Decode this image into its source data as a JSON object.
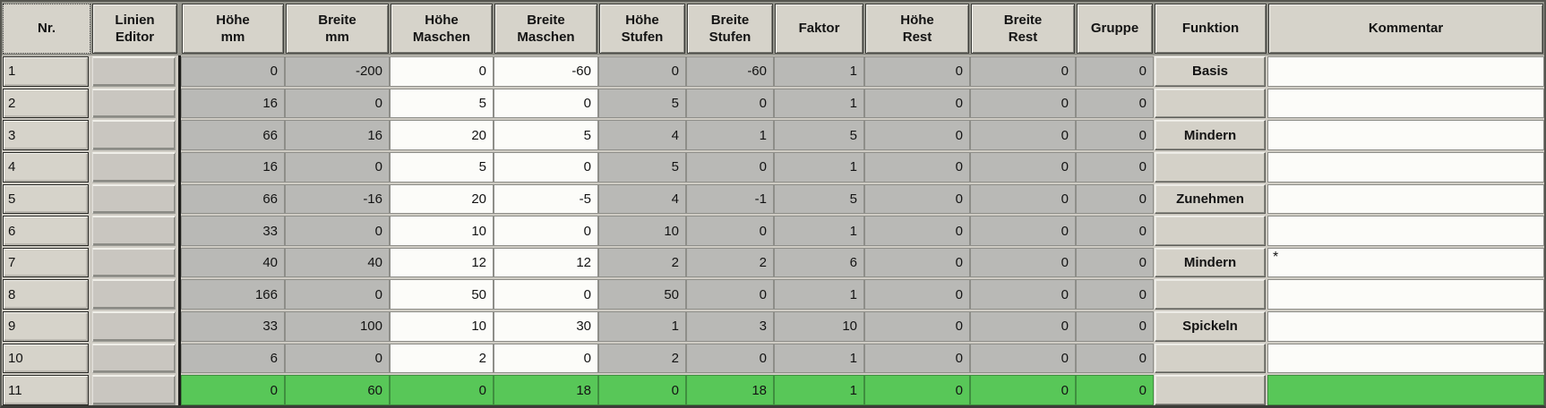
{
  "table": {
    "columns": [
      {
        "id": "nr",
        "label": "Nr."
      },
      {
        "id": "linien-editor",
        "label": "Linien\nEditor"
      },
      {
        "id": "hoehe-mm",
        "label": "Höhe\nmm"
      },
      {
        "id": "breite-mm",
        "label": "Breite\nmm"
      },
      {
        "id": "hoehe-maschen",
        "label": "Höhe\nMaschen"
      },
      {
        "id": "breite-maschen",
        "label": "Breite\nMaschen"
      },
      {
        "id": "hoehe-stufen",
        "label": "Höhe\nStufen"
      },
      {
        "id": "breite-stufen",
        "label": "Breite\nStufen"
      },
      {
        "id": "faktor",
        "label": "Faktor"
      },
      {
        "id": "hoehe-rest",
        "label": "Höhe\nRest"
      },
      {
        "id": "breite-rest",
        "label": "Breite\nRest"
      },
      {
        "id": "gruppe",
        "label": "Gruppe"
      },
      {
        "id": "funktion",
        "label": "Funktion"
      },
      {
        "id": "kommentar",
        "label": "Kommentar"
      }
    ],
    "rows": [
      {
        "nr": "1",
        "hoehe_mm": "0",
        "breite_mm": "-200",
        "hoehe_maschen": "0",
        "breite_maschen": "-60",
        "hoehe_stufen": "0",
        "breite_stufen": "-60",
        "faktor": "1",
        "hoehe_rest": "0",
        "breite_rest": "0",
        "gruppe": "0",
        "funktion": "Basis",
        "kommentar": "",
        "selected": false
      },
      {
        "nr": "2",
        "hoehe_mm": "16",
        "breite_mm": "0",
        "hoehe_maschen": "5",
        "breite_maschen": "0",
        "hoehe_stufen": "5",
        "breite_stufen": "0",
        "faktor": "1",
        "hoehe_rest": "0",
        "breite_rest": "0",
        "gruppe": "0",
        "funktion": "",
        "kommentar": "",
        "selected": false
      },
      {
        "nr": "3",
        "hoehe_mm": "66",
        "breite_mm": "16",
        "hoehe_maschen": "20",
        "breite_maschen": "5",
        "hoehe_stufen": "4",
        "breite_stufen": "1",
        "faktor": "5",
        "hoehe_rest": "0",
        "breite_rest": "0",
        "gruppe": "0",
        "funktion": "Mindern",
        "kommentar": "",
        "selected": false
      },
      {
        "nr": "4",
        "hoehe_mm": "16",
        "breite_mm": "0",
        "hoehe_maschen": "5",
        "breite_maschen": "0",
        "hoehe_stufen": "5",
        "breite_stufen": "0",
        "faktor": "1",
        "hoehe_rest": "0",
        "breite_rest": "0",
        "gruppe": "0",
        "funktion": "",
        "kommentar": "",
        "selected": false
      },
      {
        "nr": "5",
        "hoehe_mm": "66",
        "breite_mm": "-16",
        "hoehe_maschen": "20",
        "breite_maschen": "-5",
        "hoehe_stufen": "4",
        "breite_stufen": "-1",
        "faktor": "5",
        "hoehe_rest": "0",
        "breite_rest": "0",
        "gruppe": "0",
        "funktion": "Zunehmen",
        "kommentar": "",
        "selected": false
      },
      {
        "nr": "6",
        "hoehe_mm": "33",
        "breite_mm": "0",
        "hoehe_maschen": "10",
        "breite_maschen": "0",
        "hoehe_stufen": "10",
        "breite_stufen": "0",
        "faktor": "1",
        "hoehe_rest": "0",
        "breite_rest": "0",
        "gruppe": "0",
        "funktion": "",
        "kommentar": "",
        "selected": false
      },
      {
        "nr": "7",
        "hoehe_mm": "40",
        "breite_mm": "40",
        "hoehe_maschen": "12",
        "breite_maschen": "12",
        "hoehe_stufen": "2",
        "breite_stufen": "2",
        "faktor": "6",
        "hoehe_rest": "0",
        "breite_rest": "0",
        "gruppe": "0",
        "funktion": "Mindern",
        "kommentar": "*",
        "selected": false
      },
      {
        "nr": "8",
        "hoehe_mm": "166",
        "breite_mm": "0",
        "hoehe_maschen": "50",
        "breite_maschen": "0",
        "hoehe_stufen": "50",
        "breite_stufen": "0",
        "faktor": "1",
        "hoehe_rest": "0",
        "breite_rest": "0",
        "gruppe": "0",
        "funktion": "",
        "kommentar": "",
        "selected": false
      },
      {
        "nr": "9",
        "hoehe_mm": "33",
        "breite_mm": "100",
        "hoehe_maschen": "10",
        "breite_maschen": "30",
        "hoehe_stufen": "1",
        "breite_stufen": "3",
        "faktor": "10",
        "hoehe_rest": "0",
        "breite_rest": "0",
        "gruppe": "0",
        "funktion": "Spickeln",
        "kommentar": "",
        "selected": false
      },
      {
        "nr": "10",
        "hoehe_mm": "6",
        "breite_mm": "0",
        "hoehe_maschen": "2",
        "breite_maschen": "0",
        "hoehe_stufen": "2",
        "breite_stufen": "0",
        "faktor": "1",
        "hoehe_rest": "0",
        "breite_rest": "0",
        "gruppe": "0",
        "funktion": "",
        "kommentar": "",
        "selected": false
      },
      {
        "nr": "11",
        "hoehe_mm": "0",
        "breite_mm": "60",
        "hoehe_maschen": "0",
        "breite_maschen": "18",
        "hoehe_stufen": "0",
        "breite_stufen": "18",
        "faktor": "1",
        "hoehe_rest": "0",
        "breite_rest": "0",
        "gruppe": "0",
        "funktion": "",
        "kommentar": "",
        "selected": true
      }
    ],
    "selected_row_nr": "11"
  },
  "colors": {
    "selection_green": "#58c758",
    "cell_gray": "#b9b9b6",
    "cell_white": "#fcfcf9",
    "button_face": "#d6d3ca"
  }
}
